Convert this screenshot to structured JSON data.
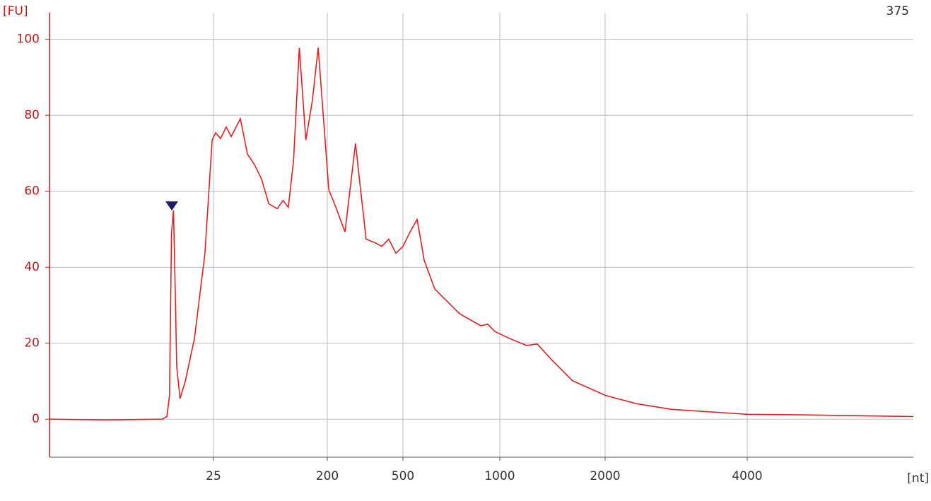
{
  "chart_data": {
    "type": "line",
    "y_label": "[FU]",
    "x_label": "[nt]",
    "corner_label": "375",
    "x": [
      0,
      8.6,
      17.2,
      17.9,
      18.3,
      18.6,
      18.9,
      19.1,
      19.4,
      19.9,
      20.7,
      22.1,
      23.7,
      24.8,
      28.3,
      35.9,
      44.6,
      52.2,
      66.3,
      77.2,
      88,
      98.9,
      110,
      123,
      132,
      140,
      148,
      157,
      167,
      177,
      186,
      195,
      206,
      234,
      270,
      290,
      312,
      332,
      354,
      388,
      416,
      444,
      472,
      500,
      537,
      573,
      610,
      664,
      719,
      792,
      902,
      938,
      975,
      1087,
      1255,
      1356,
      1490,
      1691,
      2000,
      2438,
      2935,
      4000,
      4792,
      6000
    ],
    "values": [
      0,
      -0.2,
      0,
      0.7,
      6.3,
      49,
      55,
      40,
      13.8,
      5.4,
      10,
      21.3,
      43.7,
      73.5,
      75.4,
      73.9,
      76.9,
      74.4,
      79.1,
      69.8,
      67,
      63.2,
      56.7,
      55.4,
      57.6,
      55.8,
      67.9,
      97.8,
      73.5,
      83.8,
      97.8,
      77.2,
      60.4,
      55.8,
      49.3,
      60.4,
      72.6,
      60.4,
      47.4,
      46.5,
      45.5,
      47.4,
      43.7,
      45.5,
      49.3,
      52.6,
      41.8,
      34.3,
      31.5,
      27.8,
      24.6,
      25,
      23.1,
      21.3,
      19.4,
      19.8,
      15.7,
      10.1,
      6.3,
      4.1,
      2.6,
      1.3,
      1.1,
      0.7
    ],
    "color": "#e02020",
    "xlim": [
      0,
      6000
    ],
    "xticks": [
      25,
      200,
      500,
      1000,
      2000,
      4000
    ],
    "ylim": [
      -10,
      107
    ],
    "yticks": [
      0,
      20,
      40,
      60,
      80,
      100
    ],
    "grid": true
  }
}
